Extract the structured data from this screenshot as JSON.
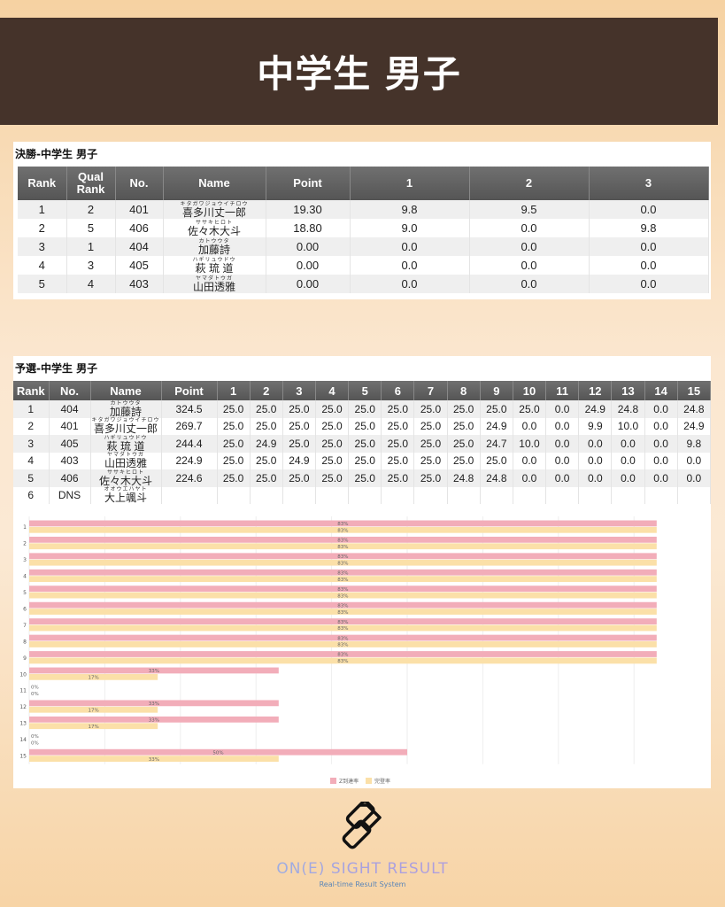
{
  "page_title": "中学生 男子",
  "final": {
    "title": "決勝-中学生 男子",
    "headers": [
      "Rank",
      "Qual\nRank",
      "No.",
      "Name",
      "Point",
      "1",
      "2",
      "3"
    ],
    "rows": [
      {
        "rank": "1",
        "qual_rank": "2",
        "no": "401",
        "kana": "キタガワジョウイチロウ",
        "name": "喜多川丈一郎",
        "point": "19.30",
        "scores": [
          "9.8",
          "9.5",
          "0.0"
        ]
      },
      {
        "rank": "2",
        "qual_rank": "5",
        "no": "406",
        "kana": "ササキヒロト",
        "name": "佐々木大斗",
        "point": "18.80",
        "scores": [
          "9.0",
          "0.0",
          "9.8"
        ]
      },
      {
        "rank": "3",
        "qual_rank": "1",
        "no": "404",
        "kana": "カトウウタ",
        "name": "加藤詩",
        "point": "0.00",
        "scores": [
          "0.0",
          "0.0",
          "0.0"
        ]
      },
      {
        "rank": "4",
        "qual_rank": "3",
        "no": "405",
        "kana": "ハギリュウドウ",
        "name": "萩 琉 道",
        "point": "0.00",
        "scores": [
          "0.0",
          "0.0",
          "0.0"
        ]
      },
      {
        "rank": "5",
        "qual_rank": "4",
        "no": "403",
        "kana": "ヤマダトウガ",
        "name": "山田透雅",
        "point": "0.00",
        "scores": [
          "0.0",
          "0.0",
          "0.0"
        ]
      }
    ]
  },
  "qualifier": {
    "title": "予選-中学生 男子",
    "headers": [
      "Rank",
      "No.",
      "Name",
      "Point",
      "1",
      "2",
      "3",
      "4",
      "5",
      "6",
      "7",
      "8",
      "9",
      "10",
      "11",
      "12",
      "13",
      "14",
      "15"
    ],
    "rows": [
      {
        "rank": "1",
        "no": "404",
        "kana": "カトウウタ",
        "name": "加藤詩",
        "point": "324.5",
        "scores": [
          "25.0",
          "25.0",
          "25.0",
          "25.0",
          "25.0",
          "25.0",
          "25.0",
          "25.0",
          "25.0",
          "25.0",
          "0.0",
          "24.9",
          "24.8",
          "0.0",
          "24.8"
        ]
      },
      {
        "rank": "2",
        "no": "401",
        "kana": "キタガワジョウイチロウ",
        "name": "喜多川丈一郎",
        "point": "269.7",
        "scores": [
          "25.0",
          "25.0",
          "25.0",
          "25.0",
          "25.0",
          "25.0",
          "25.0",
          "25.0",
          "24.9",
          "0.0",
          "0.0",
          "9.9",
          "10.0",
          "0.0",
          "24.9"
        ]
      },
      {
        "rank": "3",
        "no": "405",
        "kana": "ハギリュウドウ",
        "name": "萩 琉 道",
        "point": "244.4",
        "scores": [
          "25.0",
          "24.9",
          "25.0",
          "25.0",
          "25.0",
          "25.0",
          "25.0",
          "25.0",
          "24.7",
          "10.0",
          "0.0",
          "0.0",
          "0.0",
          "0.0",
          "9.8"
        ]
      },
      {
        "rank": "4",
        "no": "403",
        "kana": "ヤマダトウガ",
        "name": "山田透雅",
        "point": "224.9",
        "scores": [
          "25.0",
          "25.0",
          "24.9",
          "25.0",
          "25.0",
          "25.0",
          "25.0",
          "25.0",
          "25.0",
          "0.0",
          "0.0",
          "0.0",
          "0.0",
          "0.0",
          "0.0"
        ]
      },
      {
        "rank": "5",
        "no": "406",
        "kana": "ササキヒロト",
        "name": "佐々木大斗",
        "point": "224.6",
        "scores": [
          "25.0",
          "25.0",
          "25.0",
          "25.0",
          "25.0",
          "25.0",
          "25.0",
          "24.8",
          "24.8",
          "0.0",
          "0.0",
          "0.0",
          "0.0",
          "0.0",
          "0.0"
        ]
      },
      {
        "rank": "6",
        "no": "DNS",
        "kana": "オオウエハヤト",
        "name": "大上颯斗",
        "point": "",
        "scores": [
          "",
          "",
          "",
          "",
          "",
          "",
          "",
          "",
          "",
          "",
          "",
          "",
          "",
          "",
          ""
        ]
      }
    ]
  },
  "chart_data": {
    "type": "bar",
    "orientation": "horizontal",
    "categories": [
      "1",
      "2",
      "3",
      "4",
      "5",
      "6",
      "7",
      "8",
      "9",
      "10",
      "11",
      "12",
      "13",
      "14",
      "15"
    ],
    "series": [
      {
        "name": "Z到達率",
        "color": "#f2adb9",
        "values": [
          83,
          83,
          83,
          83,
          83,
          83,
          83,
          83,
          83,
          33,
          0,
          33,
          33,
          0,
          50
        ]
      },
      {
        "name": "完登率",
        "color": "#fbe0a8",
        "values": [
          83,
          83,
          83,
          83,
          83,
          83,
          83,
          83,
          83,
          17,
          0,
          17,
          17,
          0,
          33
        ]
      }
    ],
    "value_unit": "%",
    "xlim": [
      0,
      88
    ],
    "grid": true,
    "legend": "bottom"
  },
  "footer": {
    "brand": "ON(E) SIGHT RESULT",
    "tagline": "Real-time Result System"
  }
}
